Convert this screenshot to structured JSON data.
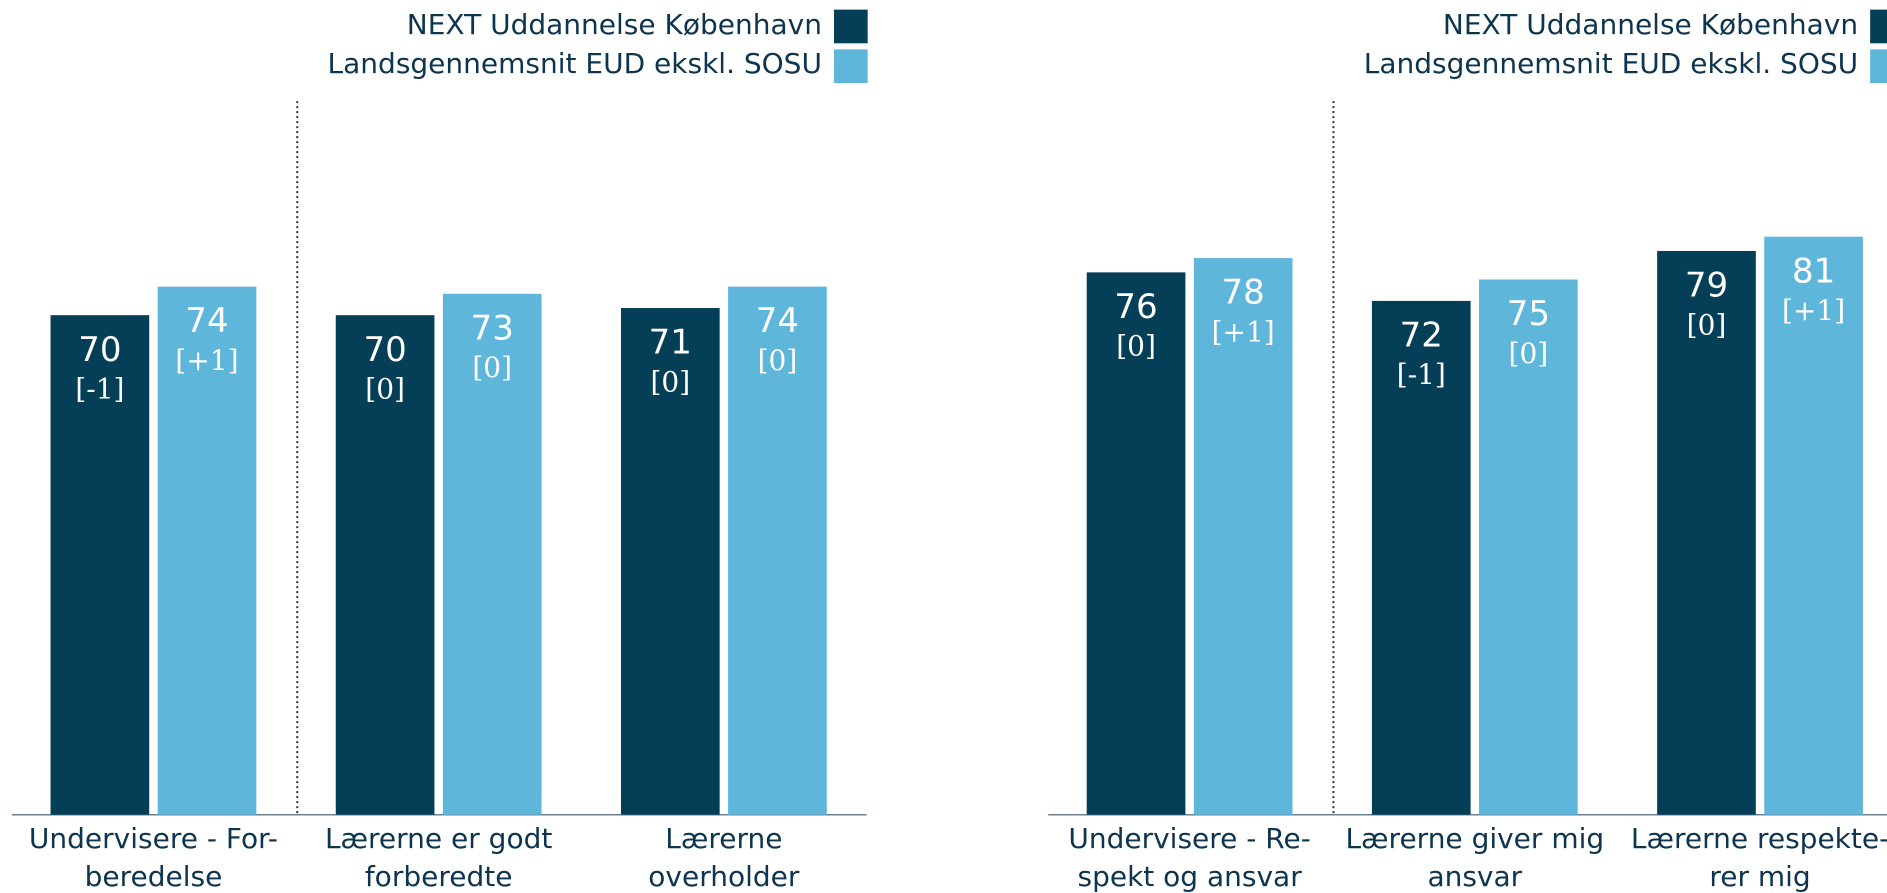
{
  "chart_data": [
    {
      "type": "bar",
      "categories": [
        "Undervisere - For-\nberedelse",
        "Lærerne er godt\nforberedte",
        "Lærerne overholder\naftaler"
      ],
      "series": [
        {
          "name": "NEXT Uddannelse København",
          "color": "#053e57",
          "values": [
            70,
            70,
            71
          ],
          "changes": [
            "[-1]",
            "[0]",
            "[0]"
          ]
        },
        {
          "name": "Landsgennemsnit EUD ekskl. SOSU",
          "color": "#5fb6db",
          "values": [
            74,
            73,
            74
          ],
          "changes": [
            "[+1]",
            "[0]",
            "[0]"
          ]
        }
      ],
      "ylim": [
        0,
        100
      ]
    },
    {
      "type": "bar",
      "categories": [
        "Undervisere - Re-\nspekt og ansvar",
        "Lærerne giver mig\nansvar",
        "Lærerne respekte-\nrer mig"
      ],
      "series": [
        {
          "name": "NEXT Uddannelse København",
          "color": "#053e57",
          "values": [
            76,
            72,
            79
          ],
          "changes": [
            "[0]",
            "[-1]",
            "[0]"
          ]
        },
        {
          "name": "Landsgennemsnit EUD ekskl. SOSU",
          "color": "#5fb6db",
          "values": [
            78,
            75,
            81
          ],
          "changes": [
            "[+1]",
            "[0]",
            "[+1]"
          ]
        }
      ],
      "ylim": [
        0,
        100
      ]
    }
  ]
}
